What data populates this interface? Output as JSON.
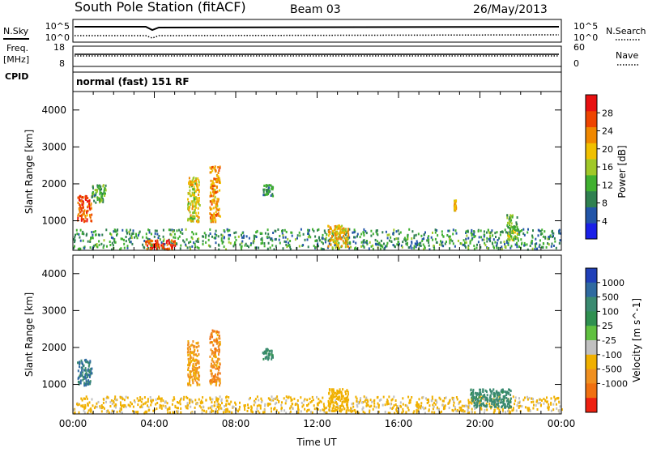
{
  "header": {
    "station": "South Pole Station (fitACF)",
    "beam": "Beam 03",
    "date": "26/May/2013"
  },
  "left_labels": {
    "nsky": "N.Sky",
    "freq": "Freq.",
    "freq_unit": "[MHz]",
    "cpid": "CPID"
  },
  "right_labels": {
    "nsearch": "N.Search",
    "nave": "Nave"
  },
  "cpid_text": "normal (fast) 151 RF",
  "noise_panel": {
    "left_ticks": [
      "10^5",
      "10^0"
    ],
    "right_ticks": [
      "10^5",
      "10^0"
    ]
  },
  "freq_panel": {
    "left_ticks": [
      "18",
      "8"
    ],
    "right_ticks": [
      "60",
      "0"
    ]
  },
  "colors": {
    "power": [
      "#1a20e8",
      "#2255a8",
      "#2f8050",
      "#40b030",
      "#a0c828",
      "#f0c000",
      "#f08800",
      "#ee4400",
      "#e81010"
    ],
    "velocity": [
      "#2040b8",
      "#2f6aa0",
      "#3a8a70",
      "#2f9050",
      "#60c040",
      "#c0c0c0",
      "#f0b000",
      "#f09020",
      "#f07010",
      "#ee2010"
    ]
  },
  "chart_data": [
    {
      "type": "heatmap",
      "title": "Power",
      "ylabel": "Slant Range [km]",
      "xlim": [
        "00:00",
        "24:00"
      ],
      "ylim": [
        200,
        4500
      ],
      "yticks": [
        "1000",
        "2000",
        "3000",
        "4000"
      ],
      "colorbar_label": "Power [dB]",
      "colorbar_ticks": [
        "4",
        "8",
        "12",
        "16",
        "20",
        "24",
        "28"
      ],
      "colorbar_range": [
        0,
        32
      ],
      "echo_regions": [
        {
          "t_start": 0.0,
          "t_end": 24.0,
          "r_start": 250,
          "r_end": 800,
          "value": 10
        },
        {
          "t_start": 0.2,
          "t_end": 0.9,
          "r_start": 1000,
          "r_end": 1700,
          "value": 26
        },
        {
          "t_start": 0.9,
          "t_end": 1.6,
          "r_start": 1500,
          "r_end": 2000,
          "value": 12
        },
        {
          "t_start": 3.5,
          "t_end": 5.0,
          "r_start": 250,
          "r_end": 500,
          "value": 27
        },
        {
          "t_start": 5.6,
          "t_end": 6.2,
          "r_start": 1000,
          "r_end": 2200,
          "value": 18
        },
        {
          "t_start": 6.7,
          "t_end": 7.2,
          "r_start": 1000,
          "r_end": 2500,
          "value": 22
        },
        {
          "t_start": 9.3,
          "t_end": 9.8,
          "r_start": 1700,
          "r_end": 2000,
          "value": 10
        },
        {
          "t_start": 12.5,
          "t_end": 13.5,
          "r_start": 300,
          "r_end": 900,
          "value": 20
        },
        {
          "t_start": 18.7,
          "t_end": 18.8,
          "r_start": 1300,
          "r_end": 1600,
          "value": 20
        },
        {
          "t_start": 21.3,
          "t_end": 21.8,
          "r_start": 500,
          "r_end": 1200,
          "value": 14
        }
      ]
    },
    {
      "type": "heatmap",
      "title": "Velocity",
      "ylabel": "Slant Range [km]",
      "xlabel": "Time UT",
      "xlim": [
        "00:00",
        "24:00"
      ],
      "ylim": [
        200,
        4500
      ],
      "yticks": [
        "1000",
        "2000",
        "3000",
        "4000"
      ],
      "xticks": [
        "00:00",
        "04:00",
        "08:00",
        "12:00",
        "16:00",
        "20:00",
        "00:00"
      ],
      "colorbar_label": "Velocity [m s^-1]",
      "colorbar_ticks": [
        "1000",
        "500",
        "100",
        "25",
        "-25",
        "-100",
        "-500",
        "-1000"
      ],
      "echo_regions": [
        {
          "t_start": 0.0,
          "t_end": 24.0,
          "r_start": 250,
          "r_end": 700,
          "value": -150
        },
        {
          "t_start": 0.2,
          "t_end": 0.9,
          "r_start": 1000,
          "r_end": 1700,
          "value": 600
        },
        {
          "t_start": 5.6,
          "t_end": 6.2,
          "r_start": 1000,
          "r_end": 2200,
          "value": -600
        },
        {
          "t_start": 6.7,
          "t_end": 7.2,
          "r_start": 1000,
          "r_end": 2500,
          "value": -800
        },
        {
          "t_start": 9.3,
          "t_end": 9.8,
          "r_start": 1700,
          "r_end": 2000,
          "value": 150
        },
        {
          "t_start": 12.5,
          "t_end": 13.5,
          "r_start": 300,
          "r_end": 900,
          "value": -300
        },
        {
          "t_start": 19.5,
          "t_end": 21.5,
          "r_start": 400,
          "r_end": 900,
          "value": 200
        }
      ]
    }
  ]
}
